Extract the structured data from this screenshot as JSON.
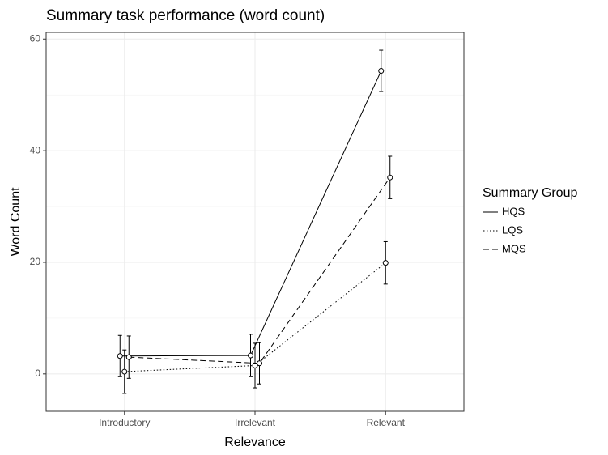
{
  "chart_data": {
    "type": "line",
    "title": "Summary task performance (word count)",
    "xlabel": "Relevance",
    "ylabel": "Word Count",
    "categories": [
      "Introductory",
      "Irrelevant",
      "Relevant"
    ],
    "series": [
      {
        "name": "HQS",
        "color": "#000000",
        "linestyle": "solid",
        "values": [
          3.2,
          3.3,
          54.3
        ],
        "errors": [
          3.7,
          3.8,
          3.7
        ]
      },
      {
        "name": "LQS",
        "color": "#000000",
        "linestyle": "dotted",
        "values": [
          0.4,
          1.5,
          19.9
        ],
        "errors": [
          3.9,
          4.0,
          3.8
        ]
      },
      {
        "name": "MQS",
        "color": "#000000",
        "linestyle": "dashed",
        "values": [
          3.0,
          1.9,
          35.2
        ],
        "errors": [
          3.8,
          3.7,
          3.8
        ]
      }
    ],
    "ylim": [
      -6.7,
      61.2
    ],
    "yticks": [
      0,
      20,
      40,
      60
    ],
    "yminor": [
      10,
      30,
      50
    ],
    "grid": true,
    "legend_title": "Summary Group",
    "legend": "right"
  }
}
